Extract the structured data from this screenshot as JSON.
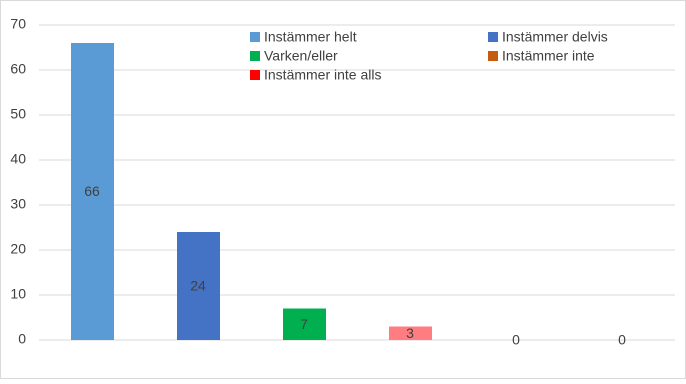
{
  "chart_data": {
    "type": "bar",
    "categories": [
      null,
      null,
      null,
      null,
      null,
      null
    ],
    "values": [
      66,
      24,
      7,
      3,
      0,
      0
    ],
    "colors": [
      "#5b9bd5",
      "#4472c4",
      "#00b050",
      "#ff7c80",
      "#c55a11",
      "#ff0000"
    ],
    "legend": [
      {
        "name": "Instämmer helt",
        "color": "#5b9bd5"
      },
      {
        "name": "Instämmer delvis",
        "color": "#4472c4"
      },
      {
        "name": "Varken/eller",
        "color": "#00b050"
      },
      {
        "name": "Instämmer inte",
        "color": "#c55a11"
      },
      {
        "name": "Instämmer inte alls",
        "color": "#ff0000"
      }
    ],
    "ylim": [
      0,
      70
    ],
    "yticks": [
      0,
      10,
      20,
      30,
      40,
      50,
      60,
      70
    ],
    "grid": true
  }
}
